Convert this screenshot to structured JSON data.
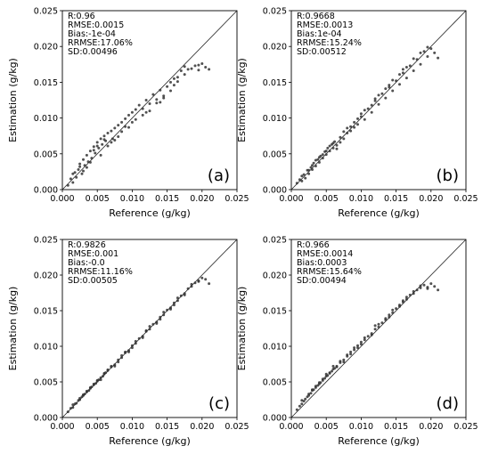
{
  "chart_data": [
    {
      "type": "scatter",
      "panel_label": "(a)",
      "xlabel": "Reference (g/kg)",
      "ylabel": "Estimation (g/kg)",
      "xlim": [
        0,
        0.025
      ],
      "ylim": [
        0,
        0.025
      ],
      "xticks": [
        "0.000",
        "0.005",
        "0.010",
        "0.015",
        "0.020",
        "0.025"
      ],
      "yticks": [
        "0.000",
        "0.005",
        "0.010",
        "0.015",
        "0.020",
        "0.025"
      ],
      "reference_line": "1:1",
      "stats": [
        "R:0.96",
        "RMSE:0.0015",
        "Bias:-1e-04",
        "RRMSE:17.06%",
        "SD:0.00496"
      ],
      "point_color": "#333333",
      "series": [
        {
          "x": [
            0.0008,
            0.0012,
            0.0015,
            0.0018,
            0.002,
            0.0023,
            0.0025,
            0.0028,
            0.003,
            0.0032,
            0.0035,
            0.0037,
            0.004,
            0.0042,
            0.0045,
            0.0047,
            0.005,
            0.0052,
            0.0055,
            0.0057,
            0.006,
            0.0062,
            0.0065,
            0.007,
            0.0072,
            0.0075,
            0.008,
            0.0085,
            0.009,
            0.0095,
            0.01,
            0.0105,
            0.011,
            0.0115,
            0.012,
            0.0125,
            0.013,
            0.0135,
            0.014,
            0.0145,
            0.015,
            0.0155,
            0.016,
            0.0165,
            0.017,
            0.0175,
            0.018,
            0.019,
            0.0195,
            0.02,
            0.0205,
            0.021,
            0.0015,
            0.0025,
            0.0035,
            0.0045,
            0.0055,
            0.0065,
            0.0075,
            0.0085,
            0.0095,
            0.0105,
            0.0115,
            0.0125,
            0.0135,
            0.0145,
            0.0155,
            0.0165,
            0.0175,
            0.0185,
            0.0195,
            0.003,
            0.004,
            0.005,
            0.006,
            0.007,
            0.008,
            0.009,
            0.01,
            0.012,
            0.014,
            0.016
          ],
          "y": [
            0.0006,
            0.0015,
            0.001,
            0.0024,
            0.0017,
            0.0028,
            0.0036,
            0.0022,
            0.0042,
            0.0034,
            0.0048,
            0.0039,
            0.0054,
            0.0044,
            0.006,
            0.0051,
            0.0066,
            0.0058,
            0.0071,
            0.0063,
            0.0075,
            0.0068,
            0.0079,
            0.0082,
            0.0071,
            0.0086,
            0.009,
            0.0094,
            0.0099,
            0.0104,
            0.0108,
            0.0112,
            0.0118,
            0.0113,
            0.0125,
            0.012,
            0.0133,
            0.0126,
            0.0139,
            0.0131,
            0.0144,
            0.015,
            0.0146,
            0.0157,
            0.0166,
            0.0172,
            0.0168,
            0.0173,
            0.0167,
            0.0176,
            0.0171,
            0.0168,
            0.0022,
            0.0032,
            0.0031,
            0.0055,
            0.0048,
            0.0061,
            0.0069,
            0.0081,
            0.0087,
            0.0098,
            0.0104,
            0.011,
            0.0121,
            0.0128,
            0.0138,
            0.0151,
            0.0161,
            0.0169,
            0.0174,
            0.0026,
            0.0038,
            0.0061,
            0.007,
            0.0066,
            0.0074,
            0.0088,
            0.0094,
            0.0108,
            0.0122,
            0.0155
          ]
        }
      ]
    },
    {
      "type": "scatter",
      "panel_label": "(b)",
      "xlabel": "Reference (g/kg)",
      "ylabel": "Estimation (g/kg)",
      "xlim": [
        0,
        0.025
      ],
      "ylim": [
        0,
        0.025
      ],
      "xticks": [
        "0.000",
        "0.005",
        "0.010",
        "0.015",
        "0.020",
        "0.025"
      ],
      "yticks": [
        "0.000",
        "0.005",
        "0.010",
        "0.015",
        "0.020",
        "0.025"
      ],
      "reference_line": "1:1",
      "stats": [
        "R:0.9668",
        "RMSE:0.0013",
        "Bias:1e-04",
        "RRMSE:15.24%",
        "SD:0.00512"
      ],
      "point_color": "#333333",
      "series": [
        {
          "x": [
            0.0008,
            0.0012,
            0.0015,
            0.0018,
            0.002,
            0.0023,
            0.0025,
            0.0028,
            0.003,
            0.0032,
            0.0035,
            0.0038,
            0.004,
            0.0042,
            0.0045,
            0.0048,
            0.005,
            0.0052,
            0.0055,
            0.0058,
            0.006,
            0.0062,
            0.0065,
            0.007,
            0.0075,
            0.008,
            0.0085,
            0.009,
            0.0095,
            0.01,
            0.0105,
            0.011,
            0.0115,
            0.012,
            0.0125,
            0.013,
            0.0135,
            0.014,
            0.0145,
            0.015,
            0.0155,
            0.016,
            0.0165,
            0.017,
            0.0175,
            0.018,
            0.0185,
            0.019,
            0.0195,
            0.02,
            0.0205,
            0.021,
            0.0015,
            0.0025,
            0.0035,
            0.0045,
            0.0055,
            0.0065,
            0.0075,
            0.0085,
            0.0095,
            0.0105,
            0.0115,
            0.0125,
            0.0135,
            0.0145,
            0.0155,
            0.0165,
            0.0175,
            0.0185,
            0.0195,
            0.003,
            0.004,
            0.005,
            0.006,
            0.007,
            0.008,
            0.009,
            0.01,
            0.012,
            0.014,
            0.016
          ],
          "y": [
            0.0009,
            0.0014,
            0.0012,
            0.0021,
            0.0016,
            0.0027,
            0.0022,
            0.0031,
            0.0028,
            0.0037,
            0.0033,
            0.0042,
            0.0038,
            0.0047,
            0.0044,
            0.0053,
            0.0049,
            0.0058,
            0.0054,
            0.0063,
            0.0058,
            0.0067,
            0.0062,
            0.0073,
            0.0071,
            0.0086,
            0.0082,
            0.0094,
            0.0091,
            0.0102,
            0.0098,
            0.0113,
            0.0108,
            0.0124,
            0.0119,
            0.0134,
            0.0128,
            0.0143,
            0.0138,
            0.0152,
            0.0147,
            0.0163,
            0.0156,
            0.0173,
            0.0166,
            0.0182,
            0.0175,
            0.0193,
            0.0186,
            0.0197,
            0.0191,
            0.0184,
            0.0019,
            0.0027,
            0.0041,
            0.0049,
            0.0061,
            0.0057,
            0.0081,
            0.0088,
            0.0099,
            0.0111,
            0.0118,
            0.0132,
            0.0141,
            0.0153,
            0.0161,
            0.0171,
            0.0183,
            0.0191,
            0.0199,
            0.0034,
            0.0045,
            0.0054,
            0.0065,
            0.0066,
            0.0079,
            0.0087,
            0.0106,
            0.0127,
            0.0146,
            0.0168
          ]
        }
      ]
    },
    {
      "type": "scatter",
      "panel_label": "(c)",
      "xlabel": "Reference (g/kg)",
      "ylabel": "Estimation (g/kg)",
      "xlim": [
        0,
        0.025
      ],
      "ylim": [
        0,
        0.025
      ],
      "xticks": [
        "0.000",
        "0.005",
        "0.010",
        "0.015",
        "0.020",
        "0.025"
      ],
      "yticks": [
        "0.000",
        "0.005",
        "0.010",
        "0.015",
        "0.020",
        "0.025"
      ],
      "reference_line": "1:1",
      "stats": [
        "R:0.9826",
        "RMSE:0.001",
        "Bias:-0.0",
        "RRMSE:11.16%",
        "SD:0.00505"
      ],
      "point_color": "#333333",
      "series": [
        {
          "x": [
            0.0008,
            0.0012,
            0.0015,
            0.0018,
            0.002,
            0.0023,
            0.0025,
            0.0028,
            0.003,
            0.0032,
            0.0035,
            0.0038,
            0.004,
            0.0042,
            0.0045,
            0.0048,
            0.005,
            0.0052,
            0.0055,
            0.0058,
            0.006,
            0.0062,
            0.0065,
            0.007,
            0.0075,
            0.008,
            0.0085,
            0.009,
            0.0095,
            0.01,
            0.0105,
            0.011,
            0.0115,
            0.012,
            0.0125,
            0.013,
            0.0135,
            0.014,
            0.0145,
            0.015,
            0.0155,
            0.016,
            0.0165,
            0.017,
            0.0175,
            0.018,
            0.0185,
            0.019,
            0.0195,
            0.02,
            0.0205,
            0.021,
            0.0015,
            0.0025,
            0.0035,
            0.0045,
            0.0055,
            0.0065,
            0.0075,
            0.0085,
            0.0095,
            0.0105,
            0.0115,
            0.0125,
            0.0135,
            0.0145,
            0.0155,
            0.0165,
            0.0175,
            0.0185,
            0.0195,
            0.003,
            0.004,
            0.005,
            0.006,
            0.007,
            0.008,
            0.009,
            0.01,
            0.012,
            0.014,
            0.016
          ],
          "y": [
            0.0008,
            0.0013,
            0.0014,
            0.0019,
            0.002,
            0.0024,
            0.0025,
            0.0029,
            0.0031,
            0.0033,
            0.0036,
            0.0038,
            0.0041,
            0.0043,
            0.0046,
            0.0048,
            0.0051,
            0.0053,
            0.0056,
            0.0058,
            0.0061,
            0.0063,
            0.0066,
            0.0071,
            0.0074,
            0.0081,
            0.0084,
            0.0091,
            0.0094,
            0.0101,
            0.0104,
            0.0111,
            0.0114,
            0.0121,
            0.0124,
            0.0131,
            0.0134,
            0.0141,
            0.0144,
            0.0151,
            0.0154,
            0.0161,
            0.0164,
            0.0171,
            0.0174,
            0.0181,
            0.0184,
            0.0189,
            0.0192,
            0.0196,
            0.0194,
            0.0188,
            0.0018,
            0.0027,
            0.0037,
            0.0047,
            0.0053,
            0.0067,
            0.0072,
            0.0087,
            0.0092,
            0.0107,
            0.0112,
            0.0128,
            0.0132,
            0.0148,
            0.0152,
            0.0168,
            0.0172,
            0.0187,
            0.0191,
            0.0032,
            0.0042,
            0.0052,
            0.0062,
            0.0072,
            0.0078,
            0.0092,
            0.0098,
            0.0122,
            0.0138,
            0.0158
          ]
        }
      ]
    },
    {
      "type": "scatter",
      "panel_label": "(d)",
      "xlabel": "Reference (g/kg)",
      "ylabel": "Estimation (g/kg)",
      "xlim": [
        0,
        0.025
      ],
      "ylim": [
        0,
        0.025
      ],
      "xticks": [
        "0.000",
        "0.005",
        "0.010",
        "0.015",
        "0.020",
        "0.025"
      ],
      "yticks": [
        "0.000",
        "0.005",
        "0.010",
        "0.015",
        "0.020",
        "0.025"
      ],
      "reference_line": "1:1",
      "stats": [
        "R:0.966",
        "RMSE:0.0014",
        "Bias:0.0003",
        "RRMSE:15.64%",
        "SD:0.00494"
      ],
      "point_color": "#333333",
      "series": [
        {
          "x": [
            0.0008,
            0.0012,
            0.0015,
            0.0018,
            0.002,
            0.0023,
            0.0025,
            0.0028,
            0.003,
            0.0032,
            0.0035,
            0.0038,
            0.004,
            0.0042,
            0.0045,
            0.0048,
            0.005,
            0.0052,
            0.0055,
            0.0058,
            0.006,
            0.0062,
            0.0065,
            0.007,
            0.0075,
            0.008,
            0.0085,
            0.009,
            0.0095,
            0.01,
            0.0105,
            0.011,
            0.0115,
            0.012,
            0.0125,
            0.013,
            0.0135,
            0.014,
            0.0145,
            0.015,
            0.0155,
            0.016,
            0.0165,
            0.017,
            0.0175,
            0.018,
            0.0185,
            0.019,
            0.0195,
            0.02,
            0.0205,
            0.021,
            0.0015,
            0.0025,
            0.0035,
            0.0045,
            0.0055,
            0.0065,
            0.0075,
            0.0085,
            0.0095,
            0.0105,
            0.0115,
            0.0125,
            0.0135,
            0.0145,
            0.0155,
            0.0165,
            0.0175,
            0.0185,
            0.0195,
            0.003,
            0.004,
            0.005,
            0.006,
            0.007,
            0.008,
            0.009,
            0.01,
            0.012,
            0.014,
            0.016
          ],
          "y": [
            0.0011,
            0.0016,
            0.0019,
            0.0023,
            0.0026,
            0.0029,
            0.0033,
            0.0034,
            0.0038,
            0.0039,
            0.0042,
            0.0045,
            0.0047,
            0.0049,
            0.0052,
            0.0055,
            0.0058,
            0.0059,
            0.0063,
            0.0065,
            0.0068,
            0.0069,
            0.0072,
            0.0077,
            0.0081,
            0.0086,
            0.0089,
            0.0095,
            0.0098,
            0.0103,
            0.0109,
            0.0114,
            0.0118,
            0.0124,
            0.0127,
            0.0133,
            0.0137,
            0.0144,
            0.0147,
            0.0153,
            0.0156,
            0.0162,
            0.0166,
            0.0172,
            0.0174,
            0.0179,
            0.0182,
            0.0186,
            0.0183,
            0.0188,
            0.0184,
            0.0179,
            0.0024,
            0.0031,
            0.0044,
            0.0054,
            0.0062,
            0.0071,
            0.0078,
            0.0092,
            0.0101,
            0.0112,
            0.0116,
            0.0131,
            0.0139,
            0.0151,
            0.0158,
            0.0169,
            0.0177,
            0.0185,
            0.0181,
            0.0039,
            0.0049,
            0.0061,
            0.0072,
            0.0079,
            0.0088,
            0.0098,
            0.0106,
            0.0129,
            0.0141,
            0.0164
          ]
        }
      ]
    }
  ]
}
